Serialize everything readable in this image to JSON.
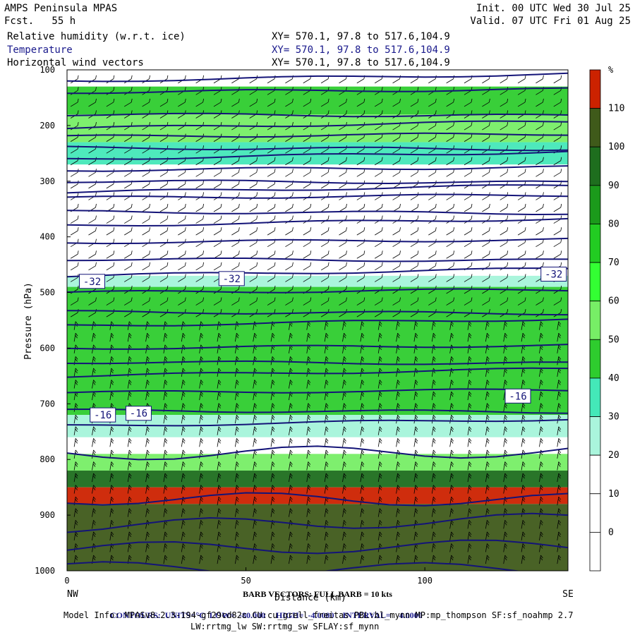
{
  "header": {
    "model_name": "AMPS Peninsula MPAS",
    "forecast": "Fcst.   55 h",
    "init": "Init. 00 UTC Wed 30 Jul 25",
    "valid": "Valid. 07 UTC Fri 01 Aug 25",
    "fields": [
      {
        "name": "Relative humidity (w.r.t. ice)",
        "xy": "XY= 570.1, 97.8 to 517.6,104.9"
      },
      {
        "name": "Temperature",
        "xy": "XY= 570.1, 97.8 to 517.6,104.9"
      },
      {
        "name": "Horizontal wind vectors",
        "xy": "XY= 570.1, 97.8 to 517.6,104.9"
      }
    ]
  },
  "chart_data": {
    "type": "heatmap",
    "subtype": "vertical cross-section",
    "ylabel": "Pressure (hPa)",
    "xlabel": "Distance (km)",
    "x_ticks": [
      "0",
      "50",
      "100"
    ],
    "y_ticks": [
      "100",
      "200",
      "300",
      "400",
      "500",
      "600",
      "700",
      "800",
      "900",
      "1000"
    ],
    "xlim": [
      0,
      140
    ],
    "ylim": [
      100,
      1000
    ],
    "x_end_labels": {
      "left": "NW",
      "right": "SE"
    },
    "colorbar": {
      "unit": "%",
      "levels": [
        "110",
        "100",
        "90",
        "80",
        "70",
        "60",
        "50",
        "40",
        "30",
        "20",
        "10",
        "0"
      ],
      "colors": [
        "#cc2200",
        "#3f5a1a",
        "#1e6e1e",
        "#1b9a1b",
        "#22cc22",
        "#33ff33",
        "#77ee66",
        "#2ecc2e",
        "#44e8b8",
        "#aaf5dc",
        "#ffffff",
        "#ffffff",
        "#ffffff"
      ]
    },
    "temperature_contours": {
      "units": "°C",
      "low": -80.0,
      "high": -4.0,
      "interval": 4.0,
      "labels": [
        {
          "text": "-32",
          "x": 7,
          "p": 480
        },
        {
          "text": "-32",
          "x": 46,
          "p": 475
        },
        {
          "text": "-32",
          "x": 136,
          "p": 467
        },
        {
          "text": "-16",
          "x": 10,
          "p": 720
        },
        {
          "text": "-16",
          "x": 20,
          "p": 717
        },
        {
          "text": "-16",
          "x": 126,
          "p": 686
        }
      ]
    },
    "rh_bands": [
      {
        "p_top": 130,
        "p_bot": 180,
        "level": "40"
      },
      {
        "p_top": 180,
        "p_bot": 230,
        "level": "50"
      },
      {
        "p_top": 230,
        "p_bot": 270,
        "level": "30"
      },
      {
        "p_top": 485,
        "p_bot": 720,
        "level": "40"
      },
      {
        "p_top": 790,
        "p_bot": 820,
        "level": "50"
      },
      {
        "p_top": 820,
        "p_bot": 850,
        "level": "90"
      },
      {
        "p_top": 850,
        "p_bot": 880,
        "level": "110"
      },
      {
        "p_top": 880,
        "p_bot": 1000,
        "level": "100"
      }
    ]
  },
  "footer": {
    "barb_note": "BARB VECTORS:  FULL BARB = 10 kts",
    "contours_label": "CONTOURS:",
    "units": "UNITS=°C",
    "low": "LOW=  -80.000",
    "high": "HIGH=  -4.0000",
    "interval": "INTERVAL=    4.0000",
    "model_info": "Model Info: MPASv8.2.3-194-gf29cd82c CU:cu_grell_freitas PBL:bl_mynn MP:mp_thompson SF:sf_noahmp 2.7",
    "model_info2": "LW:rrtmg_lw SW:rrtmg_sw SFLAY:sf_mynn"
  }
}
